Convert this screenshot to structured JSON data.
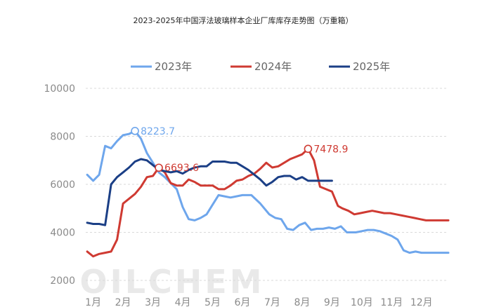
{
  "chart_data": {
    "type": "line",
    "title": "2023-2025年中国浮法玻璃样本企业厂库库存走势图（万重箱）",
    "watermark": "OILCHEM",
    "xlabel": "",
    "ylabel": "",
    "ylim": [
      2000,
      10000
    ],
    "yticks": [
      2000,
      4000,
      6000,
      8000,
      10000
    ],
    "xlim": [
      0.75,
      12.9
    ],
    "categories": [
      "1月",
      "2月",
      "3月",
      "4月",
      "5月",
      "6月",
      "7月",
      "8月",
      "9月",
      "10月",
      "11月",
      "12月"
    ],
    "grid": true,
    "legend_position": "top",
    "series": [
      {
        "name": "2023年",
        "color": "#6ea6ec",
        "x": [
          0.8,
          1.0,
          1.2,
          1.4,
          1.6,
          1.8,
          2.0,
          2.2,
          2.4,
          2.6,
          2.8,
          3.0,
          3.2,
          3.4,
          3.6,
          3.8,
          4.0,
          4.2,
          4.4,
          4.6,
          4.8,
          5.0,
          5.2,
          5.4,
          5.6,
          5.8,
          6.0,
          6.3,
          6.6,
          6.9,
          7.1,
          7.3,
          7.5,
          7.7,
          7.9,
          8.1,
          8.3,
          8.5,
          8.7,
          8.9,
          9.1,
          9.3,
          9.5,
          9.8,
          10.0,
          10.2,
          10.4,
          10.6,
          10.8,
          11.0,
          11.2,
          11.4,
          11.6,
          11.8,
          12.0,
          12.2,
          12.4,
          12.6,
          12.9
        ],
        "values": [
          6400,
          6150,
          6400,
          7600,
          7500,
          7800,
          8050,
          8100,
          8223.7,
          7900,
          7300,
          6900,
          6500,
          6300,
          6050,
          5800,
          5050,
          4550,
          4500,
          4600,
          4750,
          5150,
          5550,
          5500,
          5450,
          5500,
          5550,
          5550,
          5200,
          4750,
          4600,
          4550,
          4150,
          4100,
          4300,
          4400,
          4100,
          4150,
          4150,
          4200,
          4150,
          4250,
          4000,
          4000,
          4050,
          4100,
          4100,
          4050,
          3950,
          3850,
          3700,
          3250,
          3150,
          3200,
          3150,
          3150,
          3150,
          3150,
          3150
        ]
      },
      {
        "name": "2024年",
        "color": "#cf3a32",
        "x": [
          0.8,
          1.0,
          1.2,
          1.4,
          1.6,
          1.8,
          2.0,
          2.2,
          2.4,
          2.6,
          2.8,
          3.0,
          3.2,
          3.4,
          3.6,
          3.8,
          4.0,
          4.2,
          4.4,
          4.6,
          4.8,
          5.0,
          5.2,
          5.4,
          5.6,
          5.8,
          6.0,
          6.2,
          6.4,
          6.6,
          6.8,
          7.0,
          7.2,
          7.4,
          7.6,
          7.8,
          8.0,
          8.2,
          8.4,
          8.6,
          8.8,
          9.0,
          9.2,
          9.35,
          9.55,
          9.75,
          9.95,
          10.15,
          10.35,
          10.55,
          10.75,
          10.95,
          11.15,
          11.35,
          11.55,
          11.75,
          11.95,
          12.15,
          12.35,
          12.55,
          12.9
        ],
        "values": [
          3200,
          3000,
          3100,
          3150,
          3200,
          3700,
          5200,
          5400,
          5600,
          5900,
          6300,
          6350,
          6693.6,
          6500,
          6050,
          5950,
          5950,
          6200,
          6100,
          5950,
          5950,
          5950,
          5800,
          5800,
          5950,
          6150,
          6200,
          6350,
          6450,
          6650,
          6900,
          6700,
          6750,
          6900,
          7050,
          7150,
          7250,
          7478.9,
          7000,
          5900,
          5800,
          5700,
          5100,
          5000,
          4900,
          4750,
          4800,
          4850,
          4900,
          4850,
          4800,
          4800,
          4750,
          4700,
          4650,
          4600,
          4550,
          4500,
          4500,
          4500,
          4500
        ]
      },
      {
        "name": "2025年",
        "color": "#1b3f86",
        "x": [
          0.8,
          1.0,
          1.2,
          1.4,
          1.6,
          1.8,
          2.0,
          2.2,
          2.4,
          2.6,
          2.8,
          3.0,
          3.2,
          3.4,
          3.6,
          3.8,
          4.0,
          4.2,
          4.4,
          4.6,
          4.8,
          5.0,
          5.2,
          5.4,
          5.6,
          5.8,
          6.0,
          6.2,
          6.4,
          6.6,
          6.8,
          7.0,
          7.2,
          7.4,
          7.6,
          7.8,
          8.0,
          8.2,
          8.4,
          8.6,
          8.8,
          9.0
        ],
        "values": [
          4400,
          4350,
          4350,
          4300,
          6000,
          6300,
          6500,
          6700,
          6950,
          7050,
          7000,
          6800,
          6600,
          6550,
          6500,
          6550,
          6450,
          6600,
          6700,
          6750,
          6750,
          6950,
          6950,
          6950,
          6900,
          6900,
          6750,
          6600,
          6400,
          6200,
          5950,
          6100,
          6300,
          6350,
          6350,
          6200,
          6300,
          6150,
          6150,
          6150,
          6150,
          6150
        ]
      }
    ],
    "annotations": [
      {
        "series": 0,
        "x": 2.4,
        "y": 8223.7,
        "label": "8223.7"
      },
      {
        "series": 1,
        "x": 3.2,
        "y": 6693.6,
        "label": "6693.6"
      },
      {
        "series": 1,
        "x": 8.2,
        "y": 7478.9,
        "label": "7478.9"
      }
    ]
  }
}
